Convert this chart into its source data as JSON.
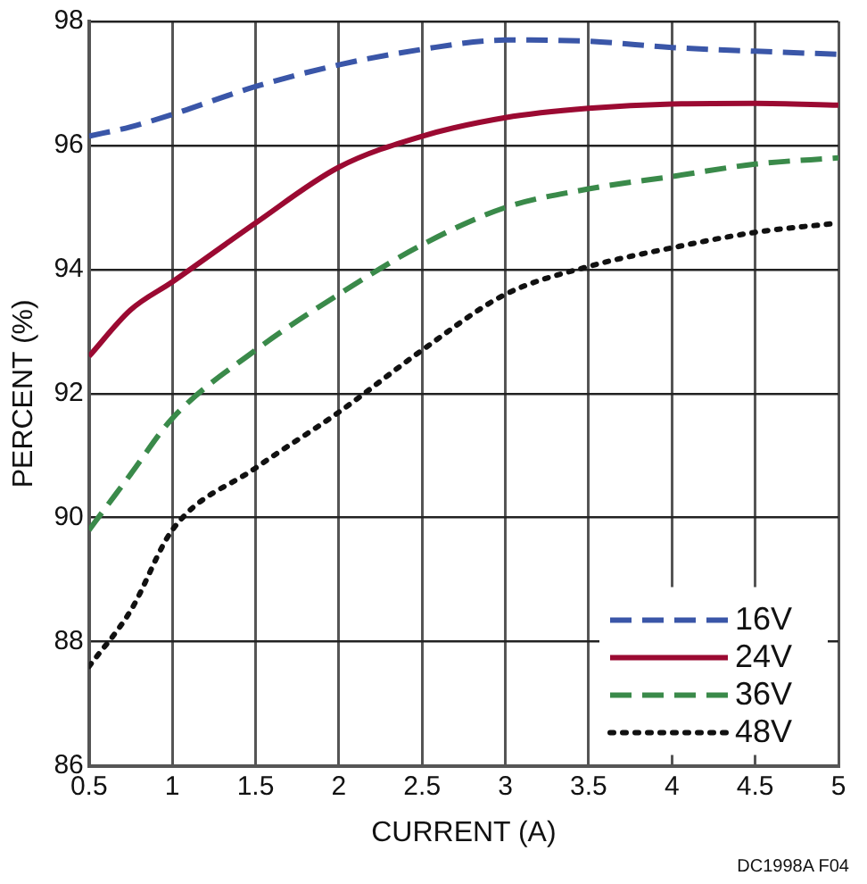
{
  "chart_data": {
    "type": "line",
    "xlabel": "CURRENT (A)",
    "ylabel": "PERCENT (%)",
    "annotations": [
      "DC1998A F04"
    ],
    "x": [
      0.5,
      0.75,
      1,
      1.5,
      2,
      2.5,
      3,
      3.5,
      4,
      4.5,
      5
    ],
    "xlim": [
      0.5,
      5
    ],
    "xticks": [
      0.5,
      1,
      1.5,
      2,
      2.5,
      3,
      3.5,
      4,
      4.5,
      5
    ],
    "ylim": [
      86,
      98
    ],
    "yticks": [
      86,
      88,
      90,
      92,
      94,
      96,
      98
    ],
    "grid": true,
    "legend": "bottom right",
    "marker": "none",
    "series": [
      {
        "name": "16V",
        "color": "#3a56a8",
        "line_style": "dashed",
        "values": [
          96.15,
          96.3,
          96.5,
          96.95,
          97.3,
          97.55,
          97.7,
          97.68,
          97.58,
          97.52,
          97.47
        ]
      },
      {
        "name": "24V",
        "color": "#9b0a32",
        "line_style": "solid",
        "values": [
          92.6,
          93.35,
          93.8,
          94.75,
          95.65,
          96.15,
          96.45,
          96.6,
          96.67,
          96.68,
          96.65
        ]
      },
      {
        "name": "36V",
        "color": "#3a8a4a",
        "line_style": "dashed",
        "values": [
          89.8,
          90.7,
          91.6,
          92.7,
          93.6,
          94.4,
          95.0,
          95.3,
          95.5,
          95.7,
          95.8
        ]
      },
      {
        "name": "48V",
        "color": "#111111",
        "line_style": "dotted",
        "values": [
          87.6,
          88.5,
          89.8,
          90.8,
          91.7,
          92.7,
          93.6,
          94.05,
          94.35,
          94.6,
          94.75
        ]
      }
    ]
  }
}
